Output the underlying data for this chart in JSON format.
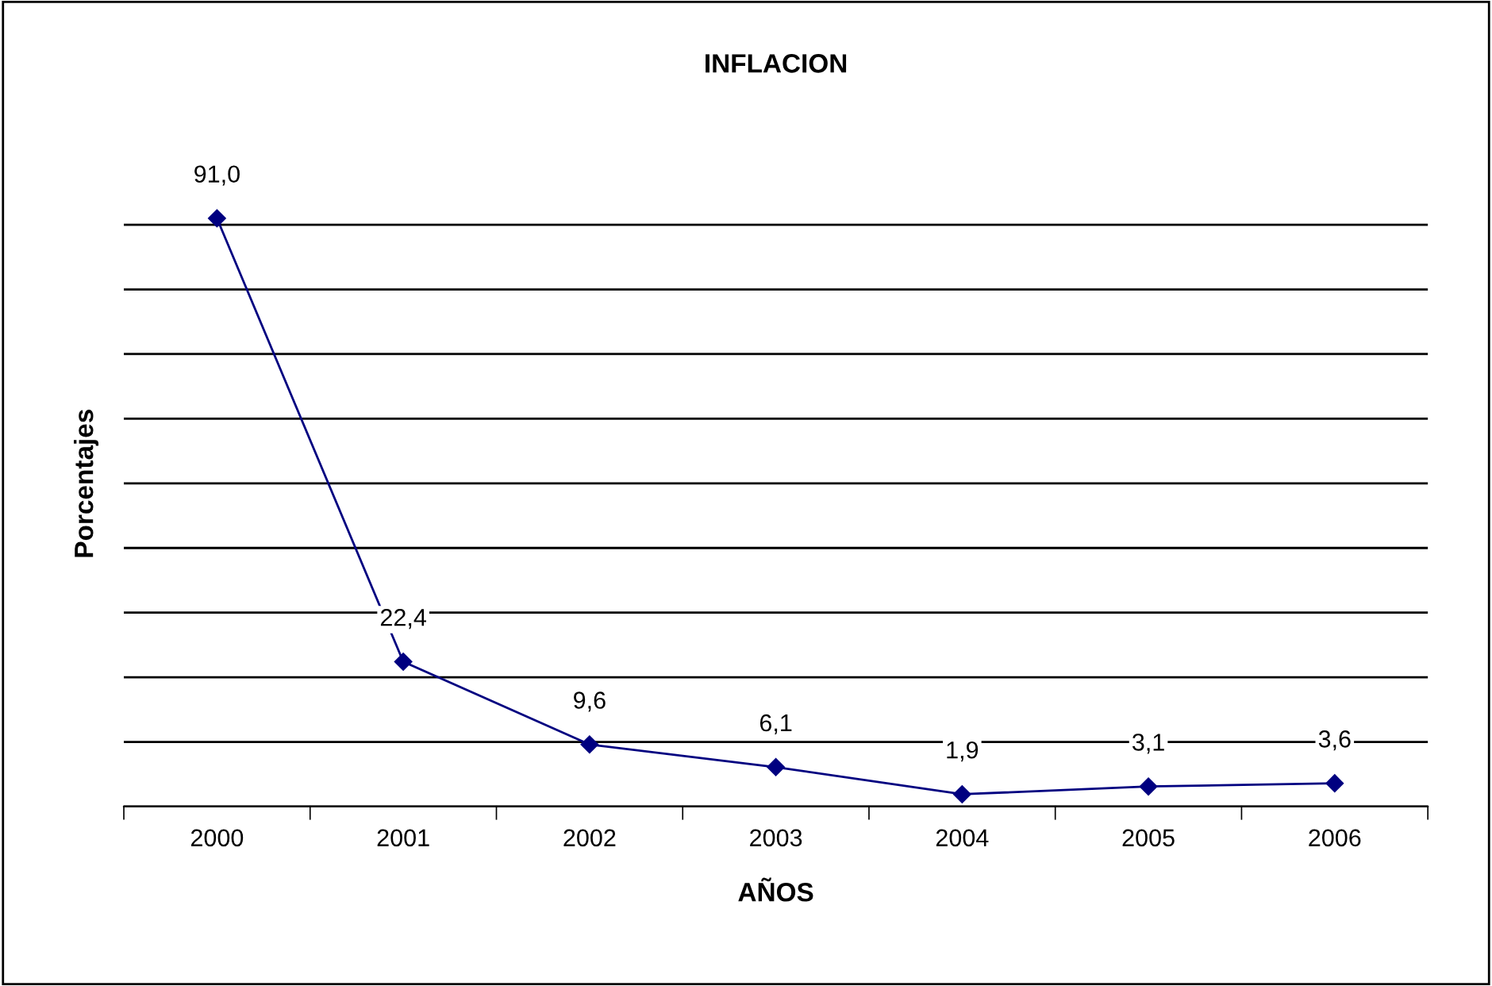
{
  "chart_data": {
    "type": "line",
    "title": "INFLACION",
    "xlabel": "AÑOS",
    "ylabel": "Porcentajes",
    "categories": [
      "2000",
      "2001",
      "2002",
      "2003",
      "2004",
      "2005",
      "2006"
    ],
    "series": [
      {
        "color": "#000080",
        "values": [
          91.0,
          22.4,
          9.6,
          6.1,
          1.9,
          3.1,
          3.6
        ],
        "value_labels": [
          "91,0",
          "22,4",
          "9,6",
          "6,1",
          "1,9",
          "3,1",
          "3,6"
        ]
      }
    ],
    "yticks": [
      {
        "value": 0,
        "label": null
      },
      {
        "value": 10,
        "label": null
      },
      {
        "value": 20,
        "label": null
      },
      {
        "value": 30,
        "label": null
      },
      {
        "value": 40,
        "label": null
      },
      {
        "value": 50,
        "label": null
      },
      {
        "value": 60,
        "label": null
      },
      {
        "value": 70,
        "label": null
      },
      {
        "value": 80,
        "label": null
      },
      {
        "value": 90,
        "label": null
      }
    ],
    "grid": "y",
    "marker": "diamond",
    "line_style": "solid",
    "tick_labels": "x"
  }
}
